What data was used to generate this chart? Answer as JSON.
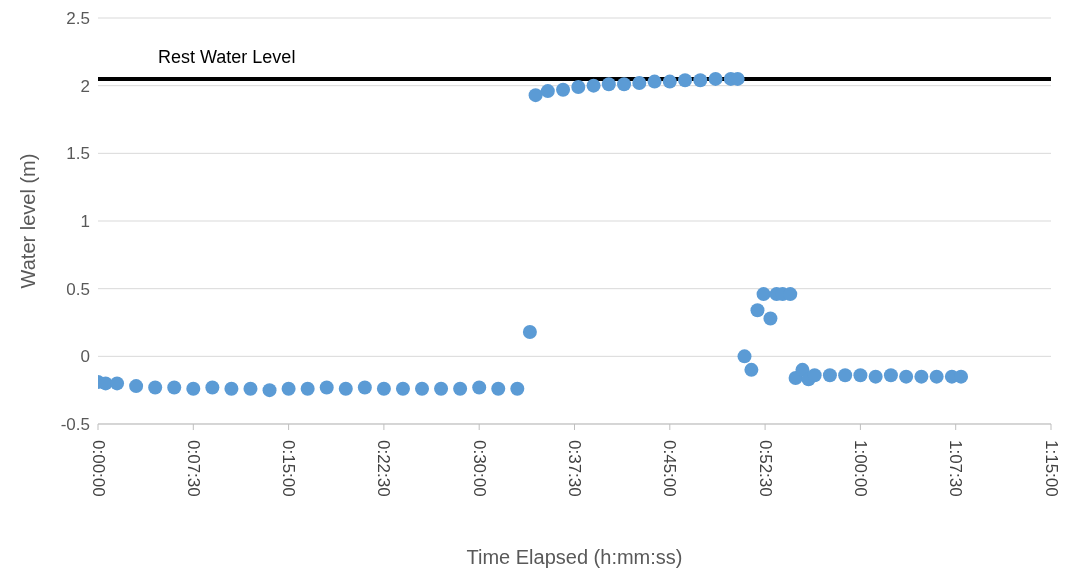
{
  "chart_data": {
    "type": "scatter",
    "xlabel": "Time Elapsed (h:mm:ss)",
    "ylabel": "Water level (m)",
    "x": [
      0,
      0.01,
      0.025,
      0.05,
      0.075,
      0.1,
      0.125,
      0.15,
      0.175,
      0.2,
      0.225,
      0.25,
      0.275,
      0.3,
      0.325,
      0.35,
      0.375,
      0.4,
      0.425,
      0.45,
      0.475,
      0.5,
      0.525,
      0.55,
      0.5665,
      0.574,
      0.59,
      0.61,
      0.63,
      0.65,
      0.67,
      0.69,
      0.71,
      0.73,
      0.75,
      0.77,
      0.79,
      0.81,
      0.83,
      0.839,
      0.848,
      0.857,
      0.865,
      0.873,
      0.882,
      0.89,
      0.898,
      0.908,
      0.915,
      0.924,
      0.932,
      0.94,
      0.96,
      0.98,
      1.0,
      1.02,
      1.04,
      1.06,
      1.08,
      1.1,
      1.12,
      1.132
    ],
    "series": [
      {
        "color": "#5b9bd5",
        "values": [
          -0.19,
          -0.2,
          -0.2,
          -0.22,
          -0.23,
          -0.23,
          -0.24,
          -0.23,
          -0.24,
          -0.24,
          -0.25,
          -0.24,
          -0.24,
          -0.23,
          -0.24,
          -0.23,
          -0.24,
          -0.24,
          -0.24,
          -0.24,
          -0.24,
          -0.23,
          -0.24,
          -0.24,
          0.18,
          1.93,
          1.96,
          1.97,
          1.99,
          2.0,
          2.01,
          2.01,
          2.02,
          2.03,
          2.03,
          2.04,
          2.04,
          2.05,
          2.05,
          2.05,
          0,
          -0.1,
          0.34,
          0.46,
          0.28,
          0.46,
          0.46,
          0.46,
          -0.16,
          -0.1,
          -0.17,
          -0.14,
          -0.14,
          -0.14,
          -0.14,
          -0.15,
          -0.14,
          -0.15,
          -0.15,
          -0.15,
          -0.15,
          -0.15
        ]
      }
    ],
    "xlim": [
      0,
      1.25
    ],
    "xticks": [
      {
        "value": 0,
        "label": "0:00:00"
      },
      {
        "value": 0.125,
        "label": "0:07:30"
      },
      {
        "value": 0.25,
        "label": "0:15:00"
      },
      {
        "value": 0.375,
        "label": "0:22:30"
      },
      {
        "value": 0.5,
        "label": "0:30:00"
      },
      {
        "value": 0.625,
        "label": "0:37:30"
      },
      {
        "value": 0.75,
        "label": "0:45:00"
      },
      {
        "value": 0.875,
        "label": "0:52:30"
      },
      {
        "value": 1,
        "label": "1:00:00"
      },
      {
        "value": 1.125,
        "label": "1:07:30"
      },
      {
        "value": 1.25,
        "label": "1:15:00"
      }
    ],
    "ylim": [
      -0.5,
      2.5
    ],
    "yticks": [
      -0.5,
      0,
      0.5,
      1,
      1.5,
      2,
      2.5
    ],
    "ref_lines": [
      {
        "axis": "y",
        "value": 2.05,
        "label": "Rest Water Level",
        "color": "#000000"
      }
    ],
    "grid": "y",
    "marker": "circle"
  }
}
